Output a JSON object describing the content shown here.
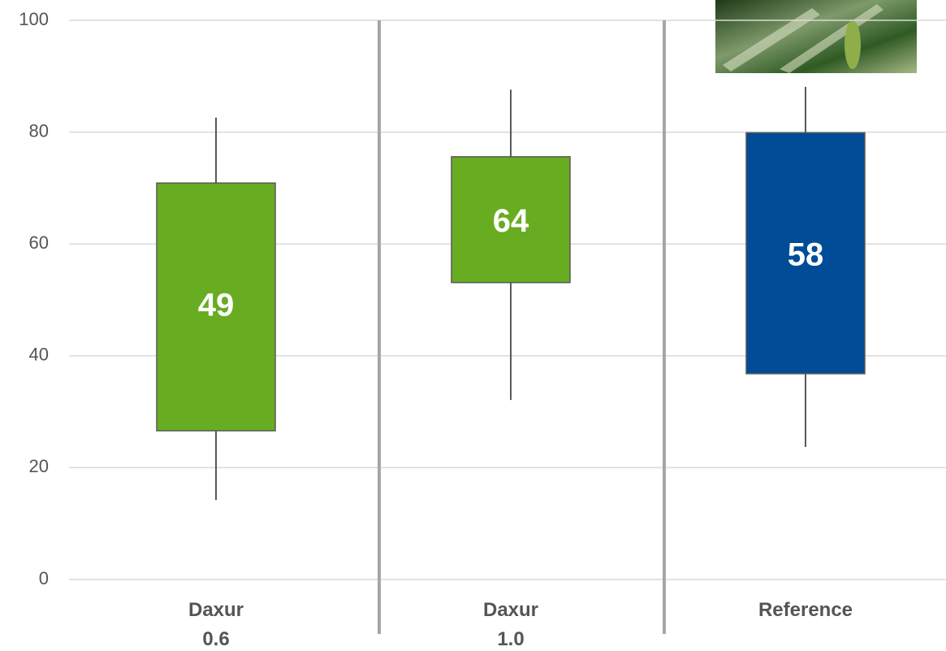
{
  "chart_data": {
    "type": "box",
    "categories": [
      [
        "Daxur",
        "0.6"
      ],
      [
        "Daxur",
        "1.0"
      ],
      [
        "Reference"
      ]
    ],
    "values": [
      49,
      64,
      58
    ],
    "whisker_low": [
      14.2,
      32.1,
      23.7
    ],
    "q1": [
      26.6,
      53.1,
      36.8
    ],
    "q3": [
      70.9,
      75.6,
      79.9
    ],
    "whisker_high": [
      82.6,
      87.6,
      88.1
    ],
    "colors": [
      "#68ac22",
      "#68ac22",
      "#004c97"
    ],
    "ylim": [
      0,
      100
    ],
    "yticks": [
      0,
      20,
      40,
      60,
      80,
      100
    ],
    "grid": true
  }
}
